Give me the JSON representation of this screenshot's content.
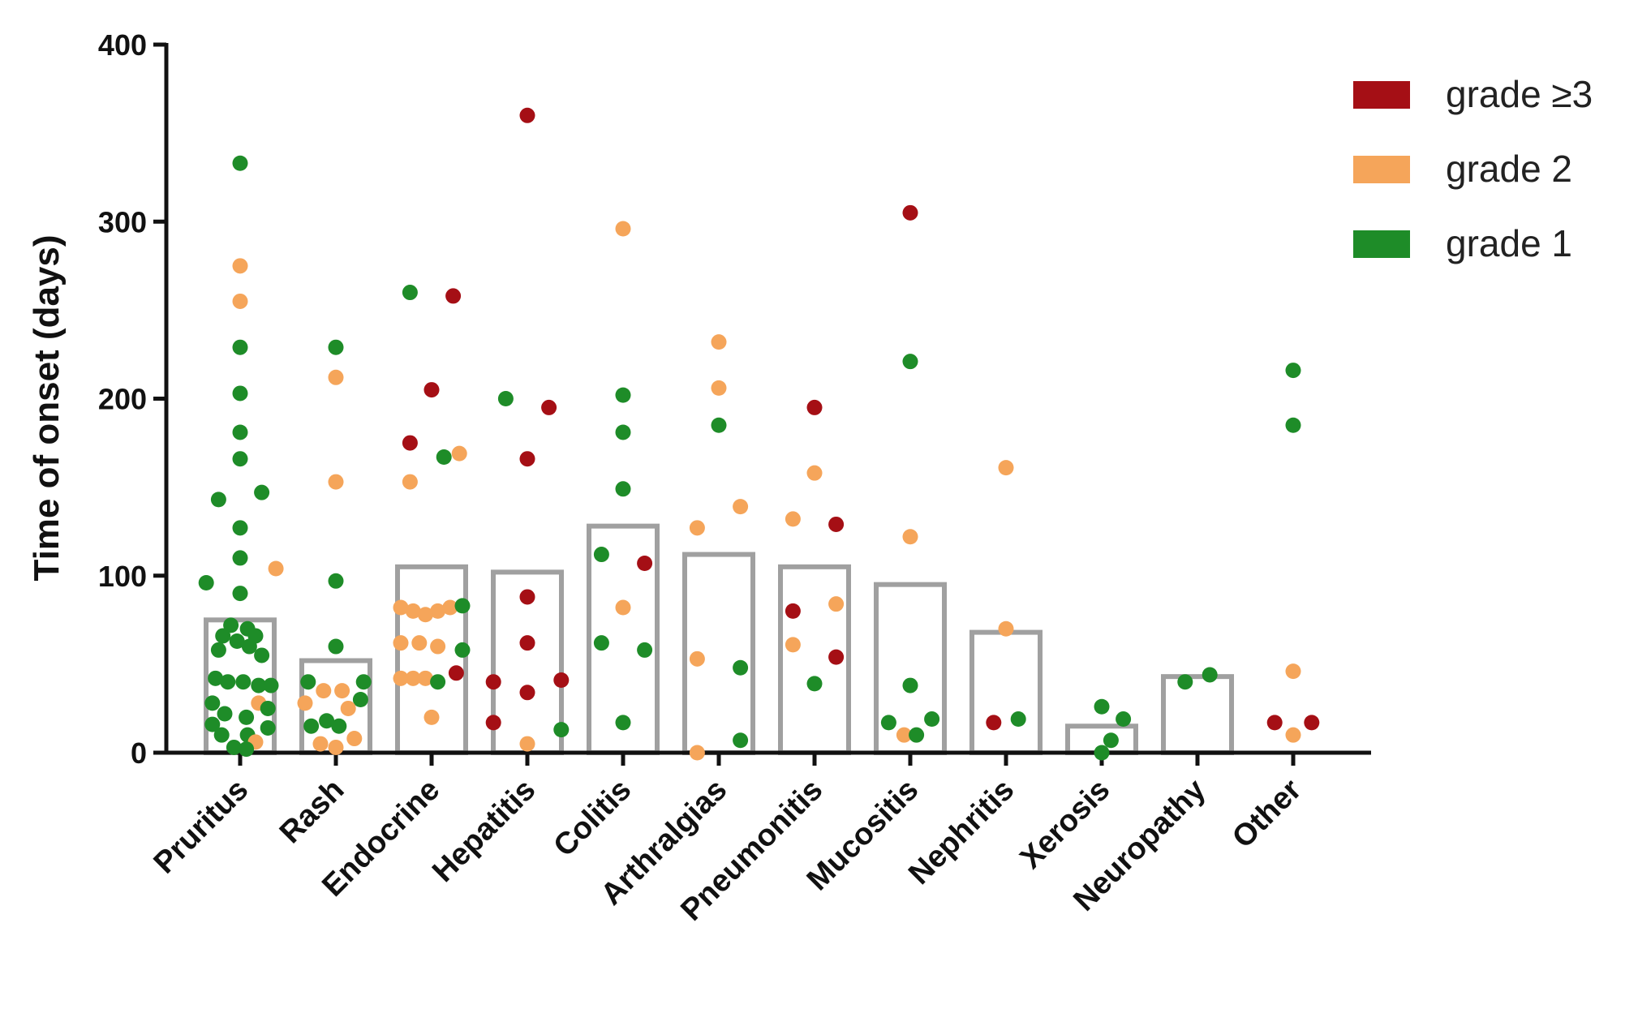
{
  "chart_data": {
    "type": "bar",
    "title": "",
    "xlabel": "",
    "ylabel": "Time of onset (days)",
    "ylim": [
      0,
      400
    ],
    "yticks": [
      0,
      100,
      200,
      300,
      400
    ],
    "grid": false,
    "legend_position": "top-right",
    "categories": [
      "Pruritus",
      "Rash",
      "Endocrine",
      "Hepatitis",
      "Colitis",
      "Arthralgias",
      "Pneumonitis",
      "Mucositis",
      "Nephritis",
      "Xerosis",
      "Neuropathy",
      "Other"
    ],
    "values": [
      75,
      52,
      105,
      102,
      128,
      112,
      105,
      95,
      68,
      15,
      43,
      0
    ],
    "bar_color": "#a0a0a0",
    "legend": [
      {
        "key": "g3",
        "label": "grade ≥3",
        "color": "#a50f15"
      },
      {
        "key": "g2",
        "label": "grade 2",
        "color": "#f5a55a"
      },
      {
        "key": "g1",
        "label": "grade 1",
        "color": "#1e8c28"
      }
    ],
    "points": [
      [
        {
          "dx": 0.0,
          "y": 333,
          "g": "g1"
        },
        {
          "dx": 0.0,
          "y": 275,
          "g": "g2"
        },
        {
          "dx": 0.0,
          "y": 255,
          "g": "g2"
        },
        {
          "dx": 0.0,
          "y": 229,
          "g": "g1"
        },
        {
          "dx": 0.0,
          "y": 203,
          "g": "g1"
        },
        {
          "dx": 0.0,
          "y": 181,
          "g": "g1"
        },
        {
          "dx": 0.0,
          "y": 166,
          "g": "g1"
        },
        {
          "dx": 0.35,
          "y": 147,
          "g": "g1"
        },
        {
          "dx": -0.35,
          "y": 143,
          "g": "g1"
        },
        {
          "dx": 0.0,
          "y": 127,
          "g": "g1"
        },
        {
          "dx": 0.0,
          "y": 110,
          "g": "g1"
        },
        {
          "dx": 0.58,
          "y": 104,
          "g": "g2"
        },
        {
          "dx": -0.55,
          "y": 96,
          "g": "g1"
        },
        {
          "dx": 0.0,
          "y": 90,
          "g": "g1"
        },
        {
          "dx": -0.15,
          "y": 72,
          "g": "g1"
        },
        {
          "dx": 0.12,
          "y": 70,
          "g": "g1"
        },
        {
          "dx": -0.28,
          "y": 66,
          "g": "g1"
        },
        {
          "dx": 0.25,
          "y": 66,
          "g": "g1"
        },
        {
          "dx": -0.05,
          "y": 63,
          "g": "g1"
        },
        {
          "dx": 0.15,
          "y": 60,
          "g": "g1"
        },
        {
          "dx": -0.35,
          "y": 58,
          "g": "g1"
        },
        {
          "dx": 0.35,
          "y": 55,
          "g": "g1"
        },
        {
          "dx": -0.4,
          "y": 42,
          "g": "g1"
        },
        {
          "dx": -0.2,
          "y": 40,
          "g": "g1"
        },
        {
          "dx": 0.05,
          "y": 40,
          "g": "g1"
        },
        {
          "dx": 0.3,
          "y": 38,
          "g": "g1"
        },
        {
          "dx": 0.5,
          "y": 38,
          "g": "g1"
        },
        {
          "dx": -0.45,
          "y": 28,
          "g": "g1"
        },
        {
          "dx": 0.3,
          "y": 28,
          "g": "g2"
        },
        {
          "dx": 0.45,
          "y": 25,
          "g": "g1"
        },
        {
          "dx": -0.25,
          "y": 22,
          "g": "g1"
        },
        {
          "dx": 0.1,
          "y": 20,
          "g": "g1"
        },
        {
          "dx": -0.45,
          "y": 16,
          "g": "g1"
        },
        {
          "dx": 0.45,
          "y": 14,
          "g": "g1"
        },
        {
          "dx": -0.3,
          "y": 10,
          "g": "g1"
        },
        {
          "dx": 0.12,
          "y": 10,
          "g": "g1"
        },
        {
          "dx": 0.25,
          "y": 6,
          "g": "g2"
        },
        {
          "dx": -0.1,
          "y": 3,
          "g": "g1"
        },
        {
          "dx": 0.1,
          "y": 2,
          "g": "g1"
        }
      ],
      [
        {
          "dx": 0.0,
          "y": 229,
          "g": "g1"
        },
        {
          "dx": 0.0,
          "y": 212,
          "g": "g2"
        },
        {
          "dx": 0.0,
          "y": 153,
          "g": "g2"
        },
        {
          "dx": 0.0,
          "y": 97,
          "g": "g1"
        },
        {
          "dx": 0.0,
          "y": 60,
          "g": "g1"
        },
        {
          "dx": -0.45,
          "y": 40,
          "g": "g1"
        },
        {
          "dx": 0.45,
          "y": 40,
          "g": "g1"
        },
        {
          "dx": -0.2,
          "y": 35,
          "g": "g2"
        },
        {
          "dx": 0.1,
          "y": 35,
          "g": "g2"
        },
        {
          "dx": 0.4,
          "y": 30,
          "g": "g1"
        },
        {
          "dx": -0.5,
          "y": 28,
          "g": "g2"
        },
        {
          "dx": 0.2,
          "y": 25,
          "g": "g2"
        },
        {
          "dx": -0.15,
          "y": 18,
          "g": "g1"
        },
        {
          "dx": -0.4,
          "y": 15,
          "g": "g1"
        },
        {
          "dx": 0.05,
          "y": 15,
          "g": "g1"
        },
        {
          "dx": 0.3,
          "y": 8,
          "g": "g2"
        },
        {
          "dx": -0.25,
          "y": 5,
          "g": "g2"
        },
        {
          "dx": 0.0,
          "y": 3,
          "g": "g2"
        }
      ],
      [
        {
          "dx": -0.35,
          "y": 260,
          "g": "g1"
        },
        {
          "dx": 0.35,
          "y": 258,
          "g": "g3"
        },
        {
          "dx": 0.0,
          "y": 205,
          "g": "g3"
        },
        {
          "dx": -0.35,
          "y": 175,
          "g": "g3"
        },
        {
          "dx": 0.2,
          "y": 167,
          "g": "g1"
        },
        {
          "dx": 0.45,
          "y": 169,
          "g": "g2"
        },
        {
          "dx": -0.35,
          "y": 153,
          "g": "g2"
        },
        {
          "dx": -0.5,
          "y": 82,
          "g": "g2"
        },
        {
          "dx": -0.3,
          "y": 80,
          "g": "g2"
        },
        {
          "dx": -0.1,
          "y": 78,
          "g": "g2"
        },
        {
          "dx": 0.1,
          "y": 80,
          "g": "g2"
        },
        {
          "dx": 0.3,
          "y": 82,
          "g": "g2"
        },
        {
          "dx": 0.5,
          "y": 83,
          "g": "g1"
        },
        {
          "dx": -0.5,
          "y": 62,
          "g": "g2"
        },
        {
          "dx": -0.2,
          "y": 62,
          "g": "g2"
        },
        {
          "dx": 0.1,
          "y": 60,
          "g": "g2"
        },
        {
          "dx": 0.5,
          "y": 58,
          "g": "g1"
        },
        {
          "dx": -0.5,
          "y": 42,
          "g": "g2"
        },
        {
          "dx": -0.3,
          "y": 42,
          "g": "g2"
        },
        {
          "dx": -0.1,
          "y": 42,
          "g": "g2"
        },
        {
          "dx": 0.1,
          "y": 40,
          "g": "g1"
        },
        {
          "dx": 0.4,
          "y": 45,
          "g": "g3"
        },
        {
          "dx": 0.0,
          "y": 20,
          "g": "g2"
        }
      ],
      [
        {
          "dx": 0.0,
          "y": 360,
          "g": "g3"
        },
        {
          "dx": -0.35,
          "y": 200,
          "g": "g1"
        },
        {
          "dx": 0.35,
          "y": 195,
          "g": "g3"
        },
        {
          "dx": 0.0,
          "y": 166,
          "g": "g3"
        },
        {
          "dx": 0.0,
          "y": 88,
          "g": "g3"
        },
        {
          "dx": 0.0,
          "y": 62,
          "g": "g3"
        },
        {
          "dx": -0.55,
          "y": 40,
          "g": "g3"
        },
        {
          "dx": 0.55,
          "y": 41,
          "g": "g3"
        },
        {
          "dx": 0.0,
          "y": 34,
          "g": "g3"
        },
        {
          "dx": -0.55,
          "y": 17,
          "g": "g3"
        },
        {
          "dx": 0.55,
          "y": 13,
          "g": "g1"
        },
        {
          "dx": 0.0,
          "y": 5,
          "g": "g2"
        }
      ],
      [
        {
          "dx": 0.0,
          "y": 296,
          "g": "g2"
        },
        {
          "dx": 0.0,
          "y": 202,
          "g": "g1"
        },
        {
          "dx": 0.0,
          "y": 181,
          "g": "g1"
        },
        {
          "dx": 0.0,
          "y": 149,
          "g": "g1"
        },
        {
          "dx": -0.35,
          "y": 112,
          "g": "g1"
        },
        {
          "dx": 0.35,
          "y": 107,
          "g": "g3"
        },
        {
          "dx": 0.0,
          "y": 82,
          "g": "g2"
        },
        {
          "dx": -0.35,
          "y": 62,
          "g": "g1"
        },
        {
          "dx": 0.35,
          "y": 58,
          "g": "g1"
        },
        {
          "dx": 0.0,
          "y": 17,
          "g": "g1"
        }
      ],
      [
        {
          "dx": 0.0,
          "y": 232,
          "g": "g2"
        },
        {
          "dx": 0.0,
          "y": 206,
          "g": "g2"
        },
        {
          "dx": 0.0,
          "y": 185,
          "g": "g1"
        },
        {
          "dx": -0.35,
          "y": 127,
          "g": "g2"
        },
        {
          "dx": 0.35,
          "y": 139,
          "g": "g2"
        },
        {
          "dx": -0.35,
          "y": 53,
          "g": "g2"
        },
        {
          "dx": 0.35,
          "y": 48,
          "g": "g1"
        },
        {
          "dx": 0.35,
          "y": 7,
          "g": "g1"
        },
        {
          "dx": -0.35,
          "y": 0,
          "g": "g2"
        }
      ],
      [
        {
          "dx": 0.0,
          "y": 195,
          "g": "g3"
        },
        {
          "dx": 0.0,
          "y": 158,
          "g": "g2"
        },
        {
          "dx": -0.35,
          "y": 132,
          "g": "g2"
        },
        {
          "dx": 0.35,
          "y": 129,
          "g": "g3"
        },
        {
          "dx": 0.35,
          "y": 84,
          "g": "g2"
        },
        {
          "dx": -0.35,
          "y": 80,
          "g": "g3"
        },
        {
          "dx": -0.35,
          "y": 61,
          "g": "g2"
        },
        {
          "dx": 0.35,
          "y": 54,
          "g": "g3"
        },
        {
          "dx": 0.0,
          "y": 39,
          "g": "g1"
        }
      ],
      [
        {
          "dx": 0.0,
          "y": 305,
          "g": "g3"
        },
        {
          "dx": 0.0,
          "y": 221,
          "g": "g1"
        },
        {
          "dx": 0.0,
          "y": 122,
          "g": "g2"
        },
        {
          "dx": 0.0,
          "y": 38,
          "g": "g1"
        },
        {
          "dx": 0.35,
          "y": 19,
          "g": "g1"
        },
        {
          "dx": -0.35,
          "y": 17,
          "g": "g1"
        },
        {
          "dx": -0.1,
          "y": 10,
          "g": "g2"
        },
        {
          "dx": 0.1,
          "y": 10,
          "g": "g1"
        }
      ],
      [
        {
          "dx": 0.0,
          "y": 161,
          "g": "g2"
        },
        {
          "dx": 0.0,
          "y": 70,
          "g": "g2"
        },
        {
          "dx": -0.2,
          "y": 17,
          "g": "g3"
        },
        {
          "dx": 0.2,
          "y": 19,
          "g": "g1"
        }
      ],
      [
        {
          "dx": 0.0,
          "y": 26,
          "g": "g1"
        },
        {
          "dx": 0.35,
          "y": 19,
          "g": "g1"
        },
        {
          "dx": 0.15,
          "y": 7,
          "g": "g1"
        },
        {
          "dx": 0.0,
          "y": 0,
          "g": "g1"
        }
      ],
      [
        {
          "dx": -0.2,
          "y": 40,
          "g": "g1"
        },
        {
          "dx": 0.2,
          "y": 44,
          "g": "g1"
        }
      ],
      [
        {
          "dx": 0.0,
          "y": 216,
          "g": "g1"
        },
        {
          "dx": 0.0,
          "y": 185,
          "g": "g1"
        },
        {
          "dx": 0.0,
          "y": 46,
          "g": "g2"
        },
        {
          "dx": -0.3,
          "y": 17,
          "g": "g3"
        },
        {
          "dx": 0.3,
          "y": 17,
          "g": "g3"
        },
        {
          "dx": 0.0,
          "y": 10,
          "g": "g2"
        }
      ]
    ]
  }
}
